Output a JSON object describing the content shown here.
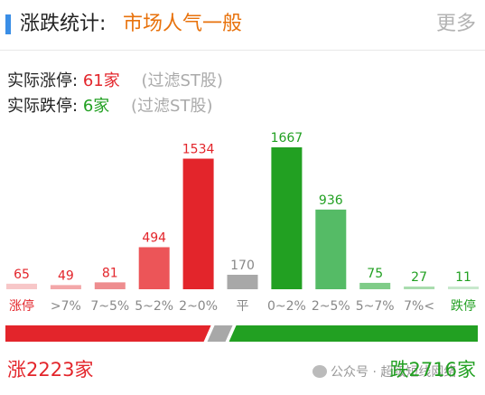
{
  "header": {
    "title": "涨跌统计:",
    "status": "市场人气一般",
    "more": "更多"
  },
  "summary": {
    "limit_up_label": "实际涨停:",
    "limit_up_value": "61家",
    "limit_down_label": "实际跌停:",
    "limit_down_value": "6家",
    "note": "(过滤ST股)"
  },
  "chart_data": {
    "type": "bar",
    "categories": [
      "涨停",
      ">7%",
      "7~5%",
      "5~2%",
      "2~0%",
      "平",
      "0~2%",
      "2~5%",
      "5~7%",
      "7%<",
      "跌停"
    ],
    "values": [
      65,
      49,
      81,
      494,
      1534,
      170,
      1667,
      936,
      75,
      27,
      11
    ],
    "colors": [
      "#f7c7c8",
      "#f3a7a9",
      "#ee8d8f",
      "#ec5558",
      "#e3252b",
      "#a8a8a8",
      "#22a022",
      "#55bb66",
      "#7fcc88",
      "#a9dcae",
      "#c8e8cc"
    ],
    "label_colors": [
      "#e3252b",
      "#888888",
      "#888888",
      "#888888",
      "#888888",
      "#888888",
      "#888888",
      "#888888",
      "#888888",
      "#888888",
      "#22a022"
    ],
    "value_colors": [
      "#e3252b",
      "#e3252b",
      "#e3252b",
      "#e3252b",
      "#e3252b",
      "#888888",
      "#22a022",
      "#22a022",
      "#22a022",
      "#22a022",
      "#22a022"
    ],
    "ylim": [
      0,
      1667
    ]
  },
  "totals": {
    "up_label": "涨2223家",
    "down_label": "跌2716家",
    "up_count": 2223,
    "down_count": 2716,
    "flat_count": 170
  },
  "watermark": {
    "text": "公众号 · 超级短线网络"
  },
  "colors": {
    "up": "#e3252b",
    "down": "#22a022",
    "flat": "#a8a8a8",
    "accent": "#3a8ee6",
    "status": "#e8720c"
  }
}
